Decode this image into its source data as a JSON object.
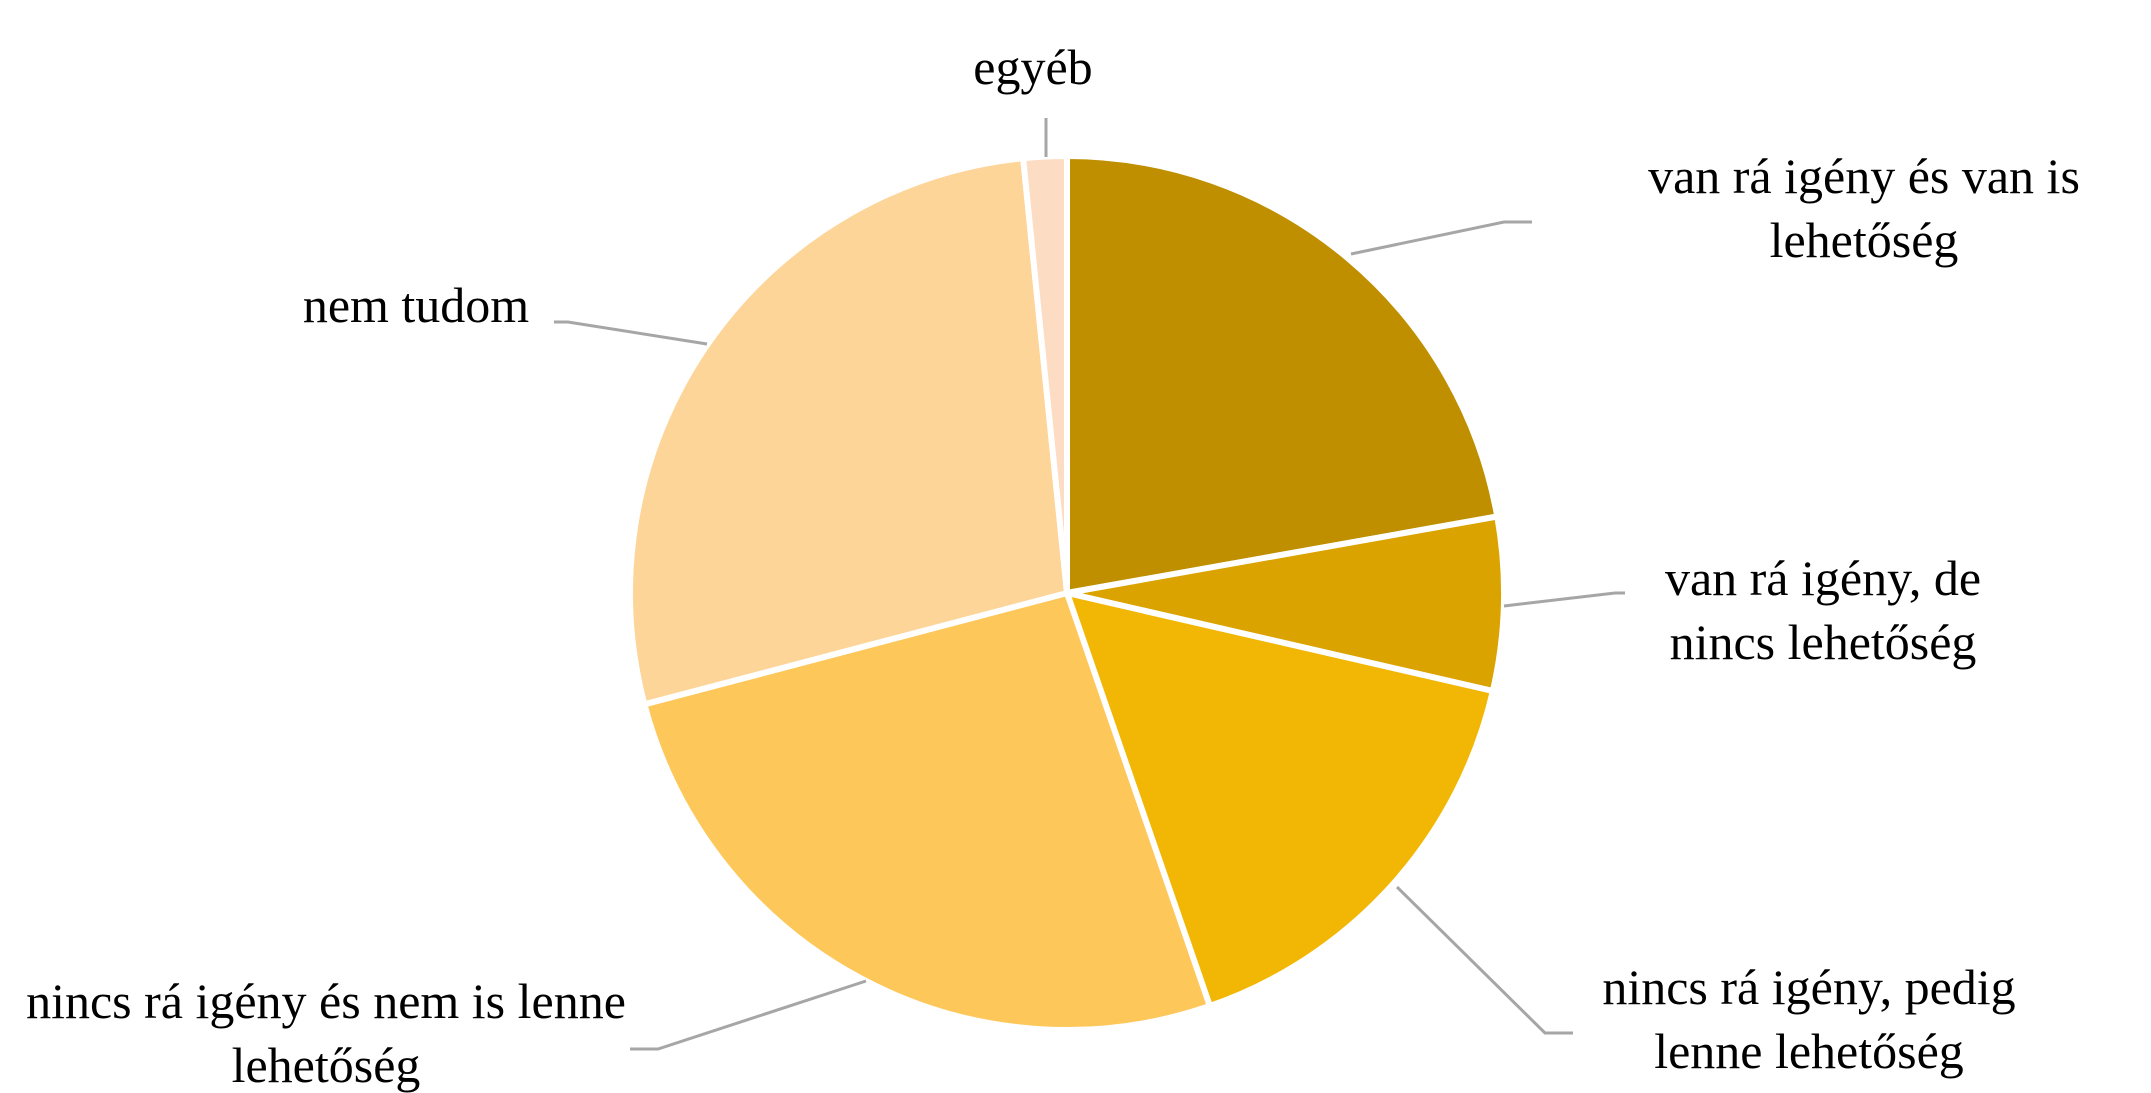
{
  "chart_data": {
    "type": "pie",
    "categories": [
      "van rá igény és van is lehetőség",
      "van rá igény, de nincs lehetőség",
      "nincs rá igény, pedig lenne lehetőség",
      "nincs rá igény és nem is lenne lehetőség",
      "nem tudom",
      "egyéb"
    ],
    "values": [
      22.2,
      6.4,
      16.1,
      26.2,
      27.5,
      1.6
    ],
    "colors": [
      "#bf8f00",
      "#dba300",
      "#f2b705",
      "#fdc75a",
      "#fdd599",
      "#fcdcc2"
    ]
  }
}
